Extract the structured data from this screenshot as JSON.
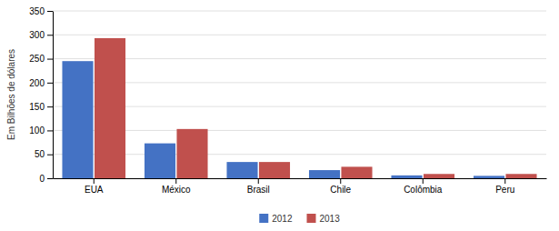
{
  "chart_data": {
    "type": "bar",
    "categories": [
      "EUA",
      "México",
      "Brasil",
      "Chile",
      "Colômbia",
      "Peru"
    ],
    "series": [
      {
        "name": "2012",
        "color": "#4472C4",
        "values": [
          245,
          73,
          34,
          17,
          6,
          5
        ]
      },
      {
        "name": "2013",
        "color": "#C0504D",
        "values": [
          293,
          103,
          34,
          24,
          9,
          9
        ]
      }
    ],
    "ylabel": "Em Bilhões de dólares",
    "ylim": [
      0,
      350
    ],
    "yticks": [
      0,
      50,
      100,
      150,
      200,
      250,
      300,
      350
    ],
    "grid": true,
    "legend": "bottom"
  }
}
